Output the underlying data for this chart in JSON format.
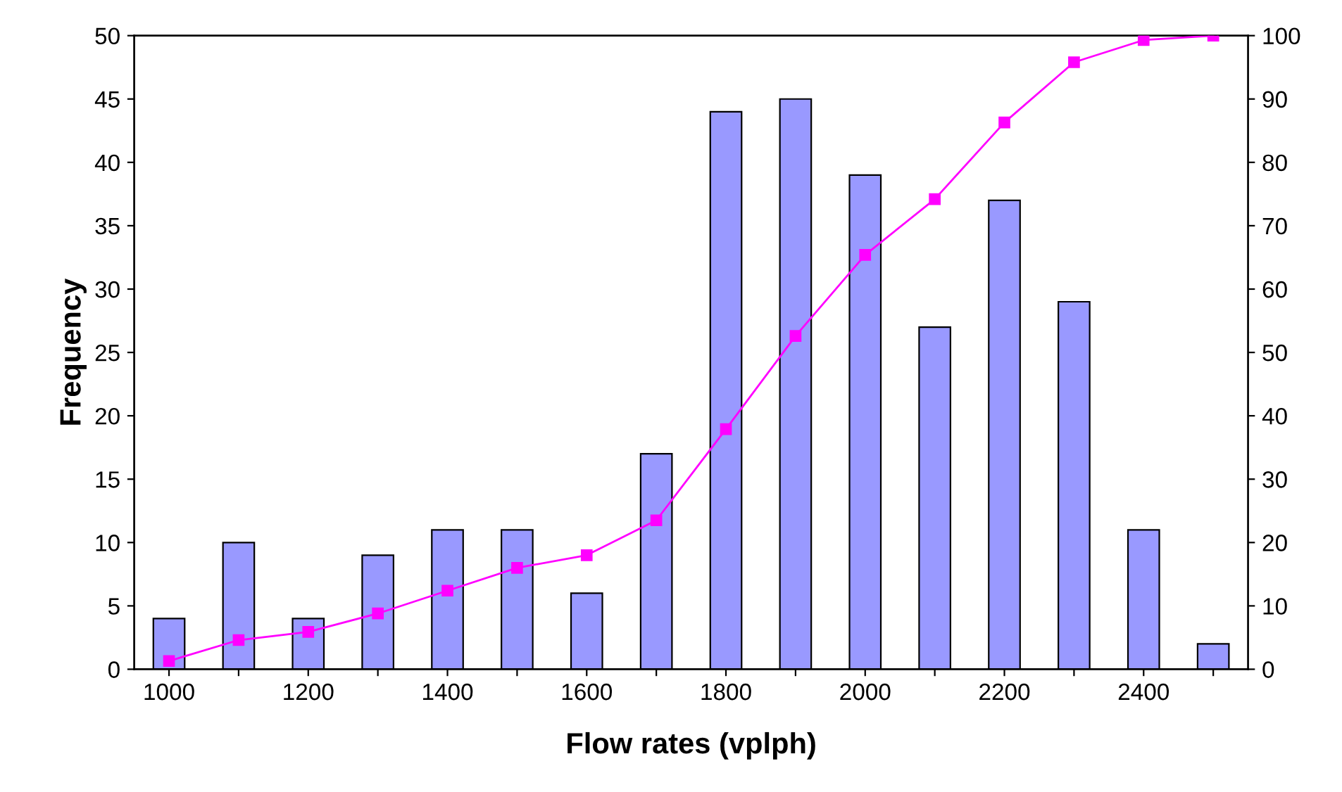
{
  "chart_data": {
    "type": "bar",
    "xlabel": "Flow rates (vplph)",
    "ylabel": "Frequency",
    "categories": [
      "1000",
      null,
      "1200",
      null,
      "1400",
      null,
      "1600",
      null,
      "1800",
      null,
      "2000",
      null,
      "2200",
      null,
      "2400",
      null
    ],
    "series": [
      {
        "color": "#9999ff",
        "values": [
          4,
          10,
          4,
          9,
          11,
          11,
          6,
          17,
          44,
          45,
          39,
          27,
          37,
          29,
          11,
          2
        ]
      },
      {
        "type": "line",
        "axis": "y2",
        "color": "#ff00ff",
        "marker": "square",
        "line_style": "solid",
        "values": [
          1.3,
          4.6,
          5.9,
          8.8,
          12.4,
          16.0,
          18.0,
          23.5,
          37.9,
          52.6,
          65.4,
          74.2,
          86.3,
          95.8,
          99.3,
          100
        ]
      }
    ],
    "ylim": [
      0,
      50
    ],
    "yticks": [
      0,
      5,
      10,
      15,
      20,
      25,
      30,
      35,
      40,
      45,
      50
    ],
    "y2lim": [
      0,
      100
    ],
    "y2ticks": [
      0,
      10,
      20,
      30,
      40,
      50,
      60,
      70,
      80,
      90,
      100
    ],
    "grid": false
  }
}
